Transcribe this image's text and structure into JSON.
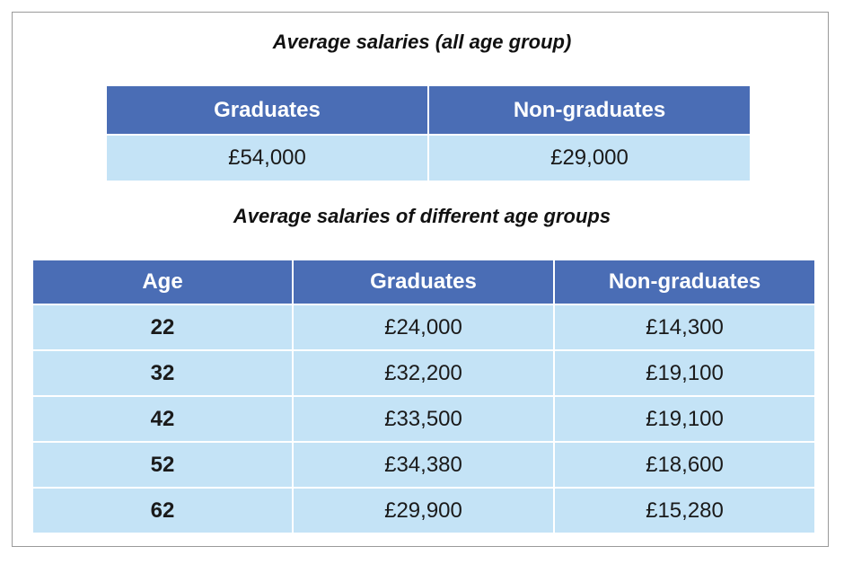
{
  "summary": {
    "title": "Average salaries (all age group)",
    "headers": [
      "Graduates",
      "Non-graduates"
    ],
    "values": [
      "£54,000",
      "£29,000"
    ]
  },
  "by_age": {
    "title": "Average salaries of different age groups",
    "headers": [
      "Age",
      "Graduates",
      "Non-graduates"
    ],
    "rows": [
      [
        "22",
        "£24,000",
        "£14,300"
      ],
      [
        "32",
        "£32,200",
        "£19,100"
      ],
      [
        "42",
        "£33,500",
        "£19,100"
      ],
      [
        "52",
        "£34,380",
        "£18,600"
      ],
      [
        "62",
        "£29,900",
        "£15,280"
      ]
    ]
  },
  "colors": {
    "header_bg": "#4a6db5",
    "cell_bg": "#c4e3f6",
    "header_text": "#ffffff"
  }
}
